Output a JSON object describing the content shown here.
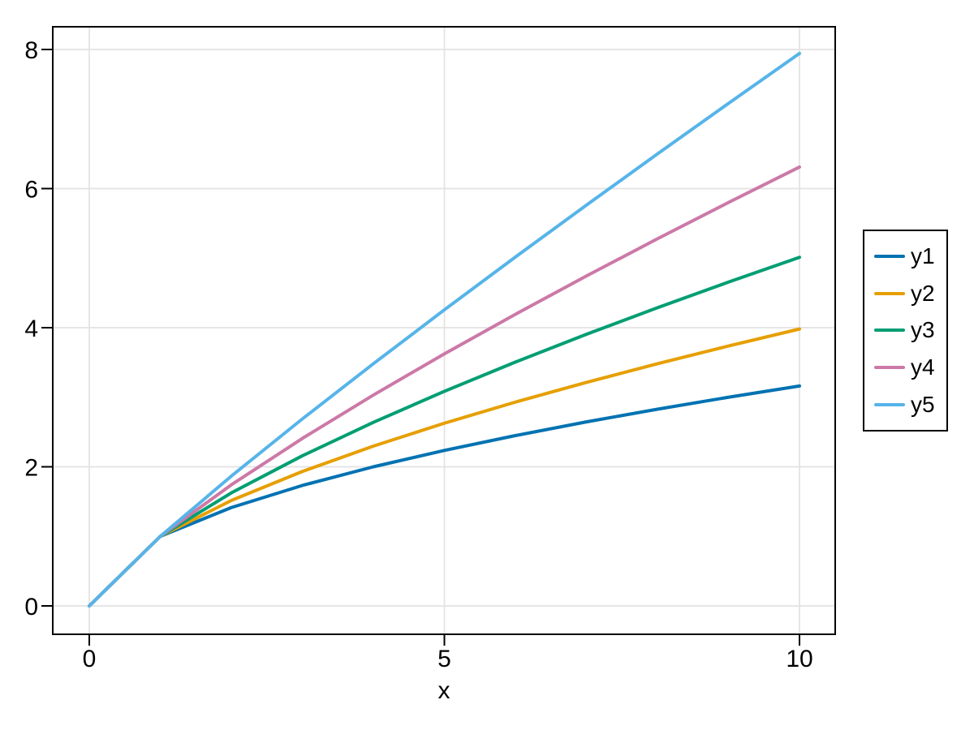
{
  "figure": {
    "background_color": "#FFFFFF",
    "frame_color": "#000000",
    "grid_color": "#E3E3E3",
    "tick_color": "#000000",
    "text_color": "#000000"
  },
  "chart_data": {
    "type": "line",
    "title": "",
    "xlabel": "x",
    "ylabel": "",
    "x": [
      0,
      1,
      2,
      3,
      4,
      5,
      6,
      7,
      8,
      9,
      10
    ],
    "series": [
      {
        "name": "y1",
        "color": "#0072B2",
        "values": [
          0,
          1,
          1.414,
          1.732,
          2.0,
          2.236,
          2.449,
          2.646,
          2.828,
          3.0,
          3.162
        ]
      },
      {
        "name": "y2",
        "color": "#E69F00",
        "values": [
          0,
          1,
          1.516,
          1.933,
          2.297,
          2.627,
          2.93,
          3.214,
          3.482,
          3.737,
          3.981
        ]
      },
      {
        "name": "y3",
        "color": "#009E73",
        "values": [
          0,
          1,
          1.625,
          2.158,
          2.639,
          3.085,
          3.506,
          3.905,
          4.287,
          4.656,
          5.012
        ]
      },
      {
        "name": "y4",
        "color": "#CC79A7",
        "values": [
          0,
          1,
          1.741,
          2.408,
          3.031,
          3.624,
          4.193,
          4.743,
          5.278,
          5.8,
          6.31
        ]
      },
      {
        "name": "y5",
        "color": "#56B4E9",
        "values": [
          0,
          1,
          1.866,
          2.688,
          3.482,
          4.257,
          5.016,
          5.762,
          6.498,
          7.225,
          7.943
        ]
      }
    ],
    "xticks": [
      0,
      5,
      10
    ],
    "yticks": [
      0,
      2,
      4,
      6,
      8
    ],
    "xlim": [
      -0.51,
      10.51
    ],
    "ylim": [
      -0.41,
      8.33
    ],
    "grid": true,
    "legend": {
      "position": "right-outside",
      "entries": [
        "y1",
        "y2",
        "y3",
        "y4",
        "y5"
      ]
    }
  }
}
